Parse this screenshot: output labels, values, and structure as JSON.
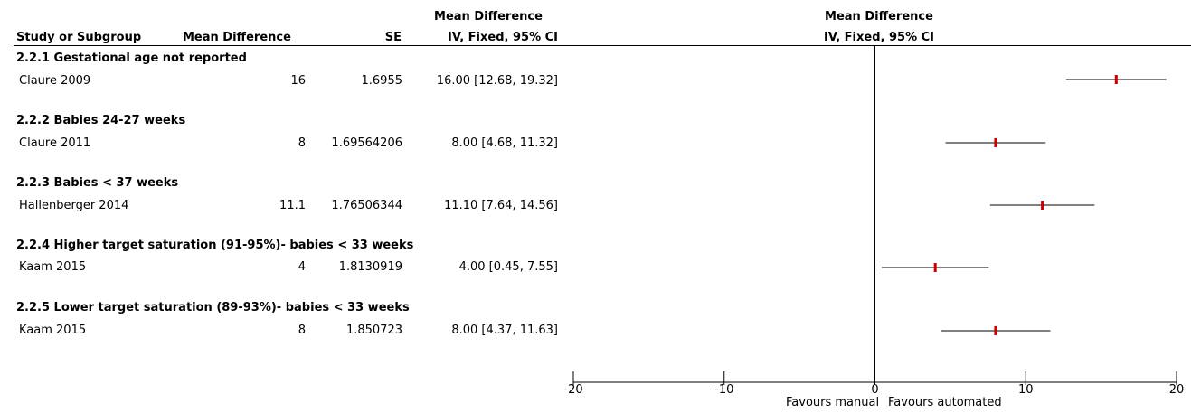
{
  "table": {
    "header_group_mean_difference": "Mean Difference",
    "col_study": "Study or Subgroup",
    "col_md": "Mean Difference",
    "col_se": "SE",
    "col_ci": "IV, Fixed, 95% CI",
    "plot_header": "Mean Difference",
    "plot_subheader": "IV, Fixed, 95% CI"
  },
  "subgroups": [
    {
      "title": "2.2.1 Gestational age not reported",
      "study": "Claure 2009",
      "md": "16",
      "se": "1.6955",
      "ci_text": "16.00 [12.68, 19.32]"
    },
    {
      "title": "2.2.2 Babies 24-27 weeks",
      "study": "Claure 2011",
      "md": "8",
      "se": "1.69564206",
      "ci_text": "8.00 [4.68, 11.32]"
    },
    {
      "title": "2.2.3 Babies < 37 weeks",
      "study": "Hallenberger 2014",
      "md": "11.1",
      "se": "1.76506344",
      "ci_text": "11.10 [7.64, 14.56]"
    },
    {
      "title": "2.2.4 Higher target saturation (91-95%)- babies < 33 weeks",
      "study": "Kaam 2015",
      "md": "4",
      "se": "1.8130919",
      "ci_text": "4.00 [0.45, 7.55]"
    },
    {
      "title": "2.2.5 Lower target saturation (89-93%)- babies < 33 weeks",
      "study": "Kaam 2015",
      "md": "8",
      "se": "1.850723",
      "ci_text": "8.00 [4.37, 11.63]"
    }
  ],
  "axis": {
    "favours_left": "Favours manual",
    "favours_right": "Favours automated"
  },
  "chart_data": {
    "type": "scatter",
    "xlim": [
      -20,
      20
    ],
    "xticks": [
      -20,
      -10,
      0,
      10,
      20
    ],
    "xtick_labels": [
      "-20",
      "-10",
      "0",
      "10",
      "20"
    ],
    "null_line": 0,
    "points": [
      {
        "study": "Claure 2009",
        "estimate": 16.0,
        "lower": 12.68,
        "upper": 19.32
      },
      {
        "study": "Claure 2011",
        "estimate": 8.0,
        "lower": 4.68,
        "upper": 11.32
      },
      {
        "study": "Hallenberger 2014",
        "estimate": 11.1,
        "lower": 7.64,
        "upper": 14.56
      },
      {
        "study": "Kaam 2015",
        "estimate": 4.0,
        "lower": 0.45,
        "upper": 7.55
      },
      {
        "study": "Kaam 2015",
        "estimate": 8.0,
        "lower": 4.37,
        "upper": 11.63
      }
    ],
    "marker_color": "#cc0000",
    "line_color": "#000000"
  }
}
